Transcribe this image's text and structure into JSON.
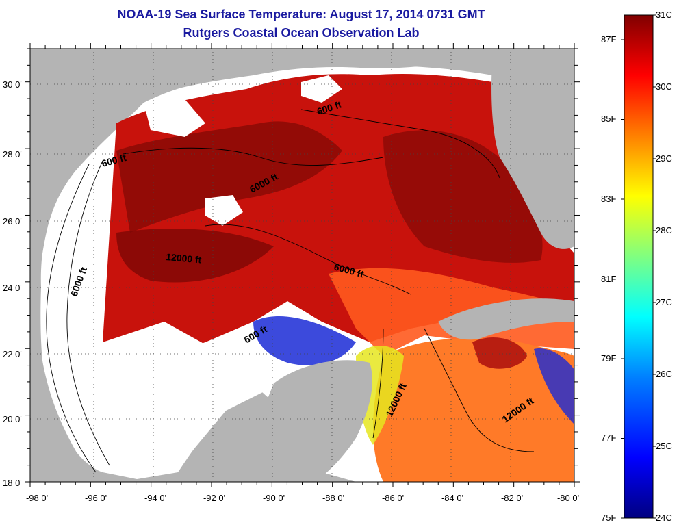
{
  "title": {
    "line1": "NOAA-19 Sea Surface Temperature:  August 17, 2014 0731 GMT",
    "line2": "Rutgers Coastal Ocean Observation Lab"
  },
  "axes": {
    "y_labels": [
      "30 0'",
      "28 0'",
      "26 0'",
      "24 0'",
      "22 0'",
      "20 0'",
      "18 0'"
    ],
    "x_labels": [
      "-98 0'",
      "-96 0'",
      "-94 0'",
      "-92 0'",
      "-90 0'",
      "-88 0'",
      "-86 0'",
      "-84 0'",
      "-82 0'",
      "-80 0'"
    ],
    "lon_range": [
      -98,
      -80
    ],
    "lat_range": [
      18,
      31
    ]
  },
  "contour_labels": [
    "600 ft",
    "600 ft",
    "6000 ft",
    "6000 ft",
    "12000 ft",
    "6000 ft",
    "600 ft",
    "12000 ft",
    "12000 ft"
  ],
  "colorbar": {
    "celsius": [
      "31C",
      "30C",
      "29C",
      "28C",
      "27C",
      "26C",
      "25C",
      "24C"
    ],
    "fahrenheit": [
      "87F",
      "85F",
      "83F",
      "81F",
      "79F",
      "77F",
      "75F"
    ],
    "colors": [
      "#000080",
      "#0000ff",
      "#0080ff",
      "#00ffff",
      "#80ff80",
      "#ffff00",
      "#ff8000",
      "#ff0000",
      "#800000"
    ]
  },
  "colors": {
    "land": "#b4b4b4",
    "title": "#1a1aa0",
    "no_data": "#ffffff"
  }
}
